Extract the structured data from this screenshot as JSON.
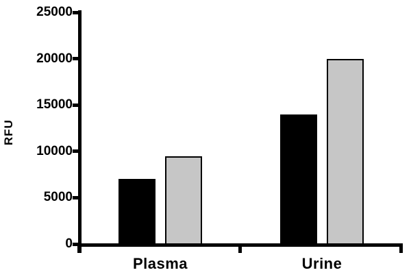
{
  "chart_data": {
    "type": "bar",
    "categories": [
      "Plasma",
      "Urine"
    ],
    "series": [
      {
        "name": "black",
        "color": "#000000",
        "values": [
          7000,
          14000
        ]
      },
      {
        "name": "gray",
        "color": "#c6c6c6",
        "values": [
          9500,
          20000
        ]
      }
    ],
    "xlabel": "",
    "ylabel": "RFU",
    "ylim": [
      0,
      25000
    ],
    "yticks": [
      0,
      5000,
      10000,
      15000,
      20000,
      25000
    ],
    "grid": false,
    "legend": "none"
  },
  "colors": {
    "axis": "#000000",
    "text": "#000000",
    "background": "#ffffff"
  }
}
